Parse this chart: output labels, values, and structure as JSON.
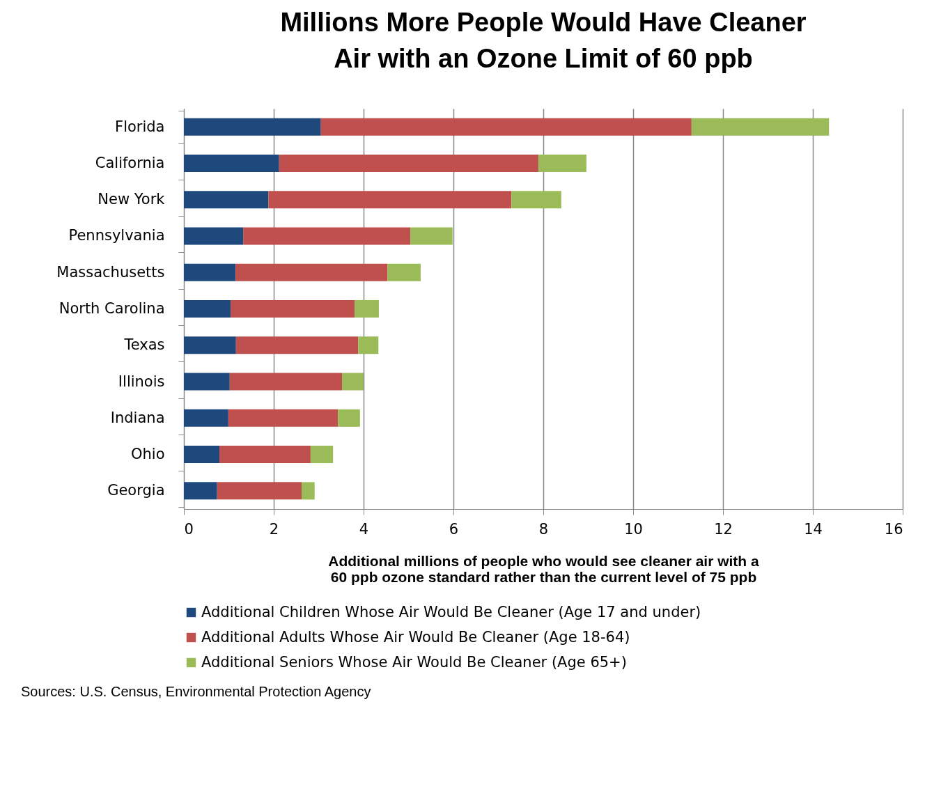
{
  "chart_data": {
    "type": "bar",
    "orientation": "horizontal",
    "stacked": true,
    "title": "Millions More People Would Have Cleaner Air with an Ozone Limit of 60 ppb",
    "xlabel": "Additional millions of people who would see cleaner air with a 60 ppb ozone standard rather than the current level of 75 ppb",
    "categories": [
      "Florida",
      "California",
      "New York",
      "Pennsylvania",
      "Massachusetts",
      "North Carolina",
      "Texas",
      "Illinois",
      "Indiana",
      "Ohio",
      "Georgia"
    ],
    "series": [
      {
        "name": "Additional Children Whose Air Would Be Cleaner (Age 17 and under)",
        "color": "#1f497d",
        "values": [
          3.05,
          2.12,
          1.88,
          1.32,
          1.15,
          1.04,
          1.16,
          1.02,
          0.99,
          0.79,
          0.74
        ]
      },
      {
        "name": "Additional Adults Whose Air Would Be Cleaner (Age 18-64)",
        "color": "#c0504d",
        "values": [
          8.25,
          5.77,
          5.41,
          3.72,
          3.38,
          2.76,
          2.72,
          2.5,
          2.44,
          2.03,
          1.88
        ]
      },
      {
        "name": "Additional Seniors Whose Air Would Be Cleaner (Age 65+)",
        "color": "#9bbb59",
        "values": [
          3.06,
          1.07,
          1.11,
          0.94,
          0.74,
          0.54,
          0.45,
          0.48,
          0.49,
          0.5,
          0.29
        ]
      }
    ],
    "xlim": [
      0,
      16
    ],
    "xticks": [
      0,
      2,
      4,
      6,
      8,
      10,
      12,
      14,
      16
    ],
    "grid": "x",
    "legend": "bottom",
    "annotations": [
      "Sources: U.S. Census, Environmental Protection Agency"
    ]
  }
}
